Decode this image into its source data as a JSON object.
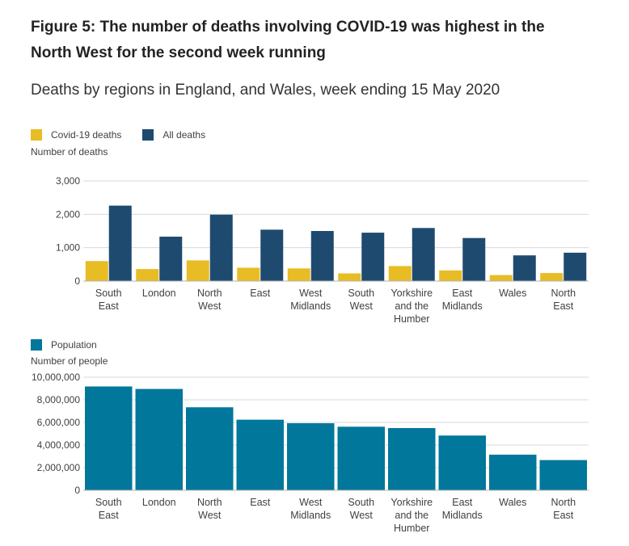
{
  "title": "Figure 5: The number of deaths involving COVID-19 was highest in the North West for the second week running",
  "subtitle": "Deaths by regions in England, and Wales, week ending 15 May 2020",
  "colors": {
    "covid": "#e8bc25",
    "all_deaths": "#1f4a70",
    "population": "#00779b",
    "gridline": "#d9d9d9",
    "axis": "#b3b3b3",
    "text": "#414042"
  },
  "chart_data": [
    {
      "type": "bar",
      "title": "",
      "categories": [
        [
          "South",
          "East"
        ],
        [
          "London"
        ],
        [
          "North",
          "West"
        ],
        [
          "East"
        ],
        [
          "West",
          "Midlands"
        ],
        [
          "South",
          "West"
        ],
        [
          "Yorkshire",
          "and the",
          "Humber"
        ],
        [
          "East",
          "Midlands"
        ],
        [
          "Wales"
        ],
        [
          "North",
          "East"
        ]
      ],
      "series": [
        {
          "name": "Covid-19 deaths",
          "values": [
            600,
            360,
            620,
            400,
            380,
            230,
            450,
            320,
            180,
            240
          ]
        },
        {
          "name": "All deaths",
          "values": [
            2260,
            1330,
            1990,
            1540,
            1500,
            1450,
            1590,
            1290,
            770,
            850
          ]
        }
      ],
      "ylabel": "Number of deaths",
      "ylim": [
        0,
        3000
      ],
      "yticks": [
        "0",
        "1,000",
        "2,000",
        "3,000"
      ],
      "ytick_values": [
        0,
        1000,
        2000,
        3000
      ],
      "grid": true,
      "legend": "top-left"
    },
    {
      "type": "bar",
      "title": "",
      "categories": [
        [
          "South",
          "East"
        ],
        [
          "London"
        ],
        [
          "North",
          "West"
        ],
        [
          "East"
        ],
        [
          "West",
          "Midlands"
        ],
        [
          "South",
          "West"
        ],
        [
          "Yorkshire",
          "and the",
          "Humber"
        ],
        [
          "East",
          "Midlands"
        ],
        [
          "Wales"
        ],
        [
          "North",
          "East"
        ]
      ],
      "series": [
        {
          "name": "Population",
          "values": [
            9180000,
            8960000,
            7340000,
            6240000,
            5930000,
            5620000,
            5500000,
            4840000,
            3150000,
            2670000
          ]
        }
      ],
      "ylabel": "Number of people",
      "ylim": [
        0,
        10000000
      ],
      "yticks": [
        "0",
        "2,000,000",
        "4,000,000",
        "6,000,000",
        "8,000,000",
        "10,000,000"
      ],
      "ytick_values": [
        0,
        2000000,
        4000000,
        6000000,
        8000000,
        10000000
      ],
      "grid": true,
      "legend": "top-left"
    }
  ]
}
